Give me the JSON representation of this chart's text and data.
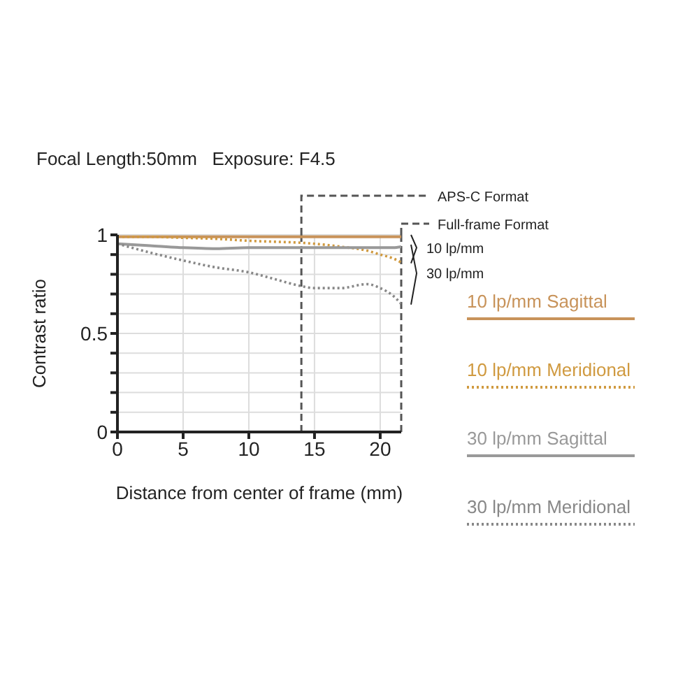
{
  "chart_data": {
    "type": "line",
    "title": "Focal Length:50mm   Exposure: F4.5",
    "xlabel": "Distance from center of frame (mm)",
    "ylabel": "Contrast ratio",
    "x": [
      0,
      2.5,
      5,
      7.5,
      10,
      12,
      14,
      15,
      17,
      19,
      20,
      21,
      21.6
    ],
    "series": [
      {
        "name": "10 lp/mm Sagittal",
        "color": "#c8935a",
        "line_style": "solid",
        "values": [
          0.99,
          0.99,
          0.99,
          0.99,
          0.99,
          0.99,
          0.99,
          0.99,
          0.99,
          0.99,
          0.99,
          0.99,
          0.99
        ]
      },
      {
        "name": "10 lp/mm Meridional",
        "color": "#d09a40",
        "line_style": "dotted",
        "values": [
          0.99,
          0.99,
          0.985,
          0.98,
          0.97,
          0.965,
          0.96,
          0.955,
          0.94,
          0.92,
          0.9,
          0.88,
          0.86
        ]
      },
      {
        "name": "30 lp/mm Sagittal",
        "color": "#999999",
        "line_style": "solid",
        "values": [
          0.955,
          0.945,
          0.935,
          0.93,
          0.935,
          0.935,
          0.935,
          0.935,
          0.935,
          0.935,
          0.935,
          0.935,
          0.94
        ]
      },
      {
        "name": "30 lp/mm Meridional",
        "color": "#888888",
        "line_style": "dotted",
        "values": [
          0.955,
          0.91,
          0.87,
          0.835,
          0.81,
          0.775,
          0.74,
          0.73,
          0.73,
          0.75,
          0.73,
          0.69,
          0.65
        ]
      }
    ],
    "xlim": [
      0,
      21.6
    ],
    "xticks": [
      0,
      5,
      10,
      15,
      20
    ],
    "ylim": [
      0,
      1
    ],
    "yticks": [
      0,
      {
        "value": 0.1,
        "label": null
      },
      {
        "value": 0.2,
        "label": null
      },
      {
        "value": 0.3,
        "label": null
      },
      {
        "value": 0.4,
        "label": null
      },
      0.5,
      {
        "value": 0.6,
        "label": null
      },
      {
        "value": 0.7,
        "label": null
      },
      {
        "value": 0.8,
        "label": null
      },
      {
        "value": 0.9,
        "label": null
      },
      1
    ],
    "grid": true,
    "legend": "right",
    "marker": "none",
    "ref_lines": [
      {
        "axis": "x",
        "value": 14,
        "label": "APS-C Format",
        "color": "#555555",
        "line_style": "dashed"
      },
      {
        "axis": "x",
        "value": 21.6,
        "label": "Full-frame Format",
        "color": "#555555",
        "line_style": "dashed"
      }
    ],
    "annotations": [
      {
        "text": "10 lp/mm",
        "x": 21.6,
        "y": 0.99
      },
      {
        "text": "30 lp/mm",
        "x": 21.6,
        "y": 0.94
      }
    ]
  }
}
